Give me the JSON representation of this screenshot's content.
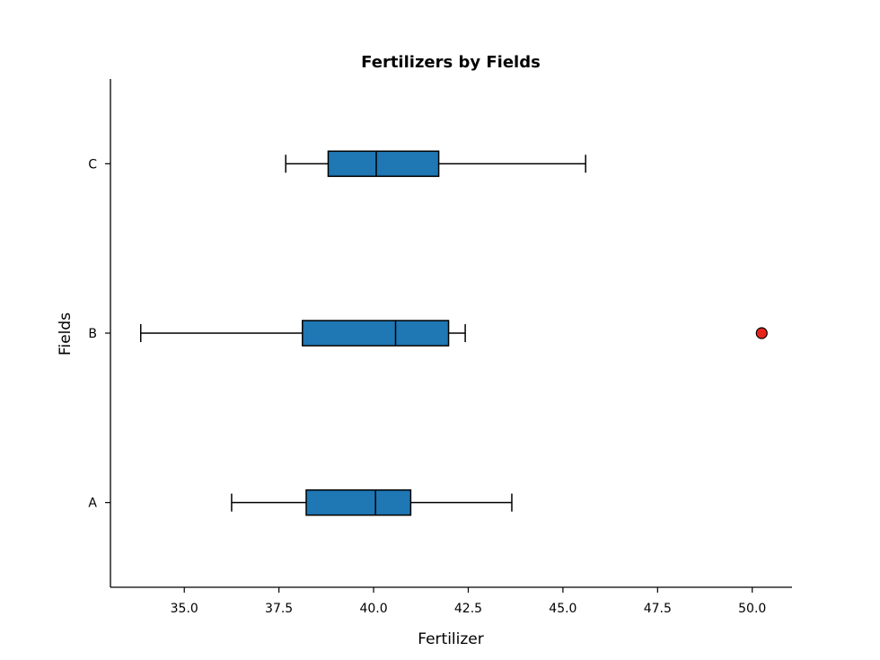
{
  "chart_data": {
    "type": "boxplot",
    "orientation": "horizontal",
    "title": "Fertilizers by Fields",
    "xlabel": "Fertilizer",
    "ylabel": "Fields",
    "xlim": [
      33.05,
      51.05
    ],
    "xticks": [
      35.0,
      37.5,
      40.0,
      42.5,
      45.0,
      47.5,
      50.0
    ],
    "xtick_labels": [
      "35.0",
      "37.5",
      "40.0",
      "42.5",
      "45.0",
      "47.5",
      "50.0"
    ],
    "categories": [
      "A",
      "B",
      "C"
    ],
    "box_color": "#1f77b4",
    "outlier_color": "#e8231a",
    "boxes": [
      {
        "name": "A",
        "whisker_low": 36.25,
        "q1": 38.22,
        "median": 40.05,
        "q3": 40.98,
        "whisker_high": 43.65,
        "outliers": []
      },
      {
        "name": "B",
        "whisker_low": 33.85,
        "q1": 38.12,
        "median": 40.58,
        "q3": 41.98,
        "whisker_high": 42.42,
        "outliers": [
          50.25
        ]
      },
      {
        "name": "C",
        "whisker_low": 37.68,
        "q1": 38.8,
        "median": 40.07,
        "q3": 41.72,
        "whisker_high": 45.6,
        "outliers": []
      }
    ]
  }
}
